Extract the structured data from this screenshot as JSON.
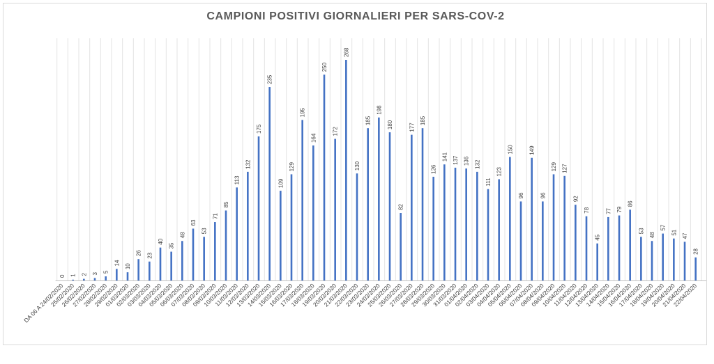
{
  "chart_data": {
    "type": "bar",
    "title": "CAMPIONI POSITIVI GIORNALIERI PER SARS-COV-2",
    "xlabel": "",
    "ylabel": "",
    "ylim": [
      0,
      280
    ],
    "grid": "vertical",
    "bar_color": "#4472c4",
    "categories": [
      "DA 06 A 24/02/2020",
      "25/02/2020",
      "26/02/2020",
      "27/02/2020",
      "28/02/2020",
      "29/02/2020",
      "01/03/2020",
      "02/03/2020",
      "03/03/2020",
      "04/03/2020",
      "05/03/2020",
      "06/03/2020",
      "07/03/2020",
      "08/03/2020",
      "09/03/2020",
      "10/03/2020",
      "11/03/2020",
      "12/03/2020",
      "13/03/2020",
      "14/03/2020",
      "15/03/2020",
      "16/03/2020",
      "17/03/2020",
      "18/03/2020",
      "19/03/2020",
      "20/03/2020",
      "21/03/2020",
      "22/03/2020",
      "23/03/2020",
      "24/03/2020",
      "25/03/2020",
      "26/03/2020",
      "27/03/2020",
      "28/03/2020",
      "29/03/2020",
      "30/03/2020",
      "31/03/2020",
      "01/04/2020",
      "02/04/2020",
      "03/04/2020",
      "04/04/2020",
      "05/04/2020",
      "06/04/2020",
      "07/04/2020",
      "08/04/2020",
      "09/04/2020",
      "10/04/2020",
      "11/04/2020",
      "12/04/2020",
      "13/04/2020",
      "14/04/2020",
      "15/04/2020",
      "16/04/2020",
      "17/04/2020",
      "18/04/2020",
      "19/04/2020",
      "20/04/2020",
      "21/04/2020",
      "22/04/2020"
    ],
    "values": [
      0,
      1,
      2,
      3,
      5,
      14,
      10,
      26,
      23,
      40,
      35,
      48,
      63,
      53,
      71,
      85,
      113,
      132,
      175,
      235,
      109,
      129,
      195,
      164,
      250,
      172,
      268,
      130,
      185,
      198,
      180,
      82,
      177,
      185,
      126,
      141,
      137,
      136,
      132,
      111,
      123,
      150,
      96,
      149,
      96,
      129,
      127,
      92,
      78,
      45,
      77,
      79,
      86,
      53,
      48,
      57,
      51,
      47,
      28
    ]
  }
}
